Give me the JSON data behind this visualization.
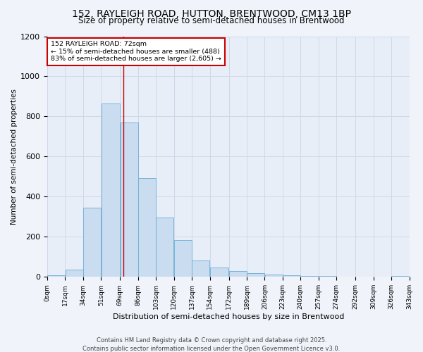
{
  "title": "152, RAYLEIGH ROAD, HUTTON, BRENTWOOD, CM13 1BP",
  "subtitle": "Size of property relative to semi-detached houses in Brentwood",
  "xlabel": "Distribution of semi-detached houses by size in Brentwood",
  "ylabel": "Number of semi-detached properties",
  "footer_line1": "Contains HM Land Registry data © Crown copyright and database right 2025.",
  "footer_line2": "Contains public sector information licensed under the Open Government Licence v3.0.",
  "annotation_title": "152 RAYLEIGH ROAD: 72sqm",
  "annotation_line1": "← 15% of semi-detached houses are smaller (488)",
  "annotation_line2": "83% of semi-detached houses are larger (2,605) →",
  "bar_left_edges": [
    0,
    17,
    34,
    51,
    69,
    86,
    103,
    120,
    137,
    154,
    172,
    189,
    206,
    223,
    240,
    257,
    274,
    292,
    309,
    326
  ],
  "bar_widths": [
    17,
    17,
    17,
    18,
    17,
    17,
    17,
    17,
    17,
    18,
    17,
    17,
    17,
    17,
    17,
    17,
    18,
    17,
    17,
    17
  ],
  "bar_heights": [
    8,
    35,
    345,
    865,
    770,
    492,
    295,
    185,
    82,
    48,
    30,
    20,
    12,
    8,
    5,
    3,
    2,
    1,
    1,
    5
  ],
  "tick_labels": [
    "0sqm",
    "17sqm",
    "34sqm",
    "51sqm",
    "69sqm",
    "86sqm",
    "103sqm",
    "120sqm",
    "137sqm",
    "154sqm",
    "172sqm",
    "189sqm",
    "206sqm",
    "223sqm",
    "240sqm",
    "257sqm",
    "274sqm",
    "292sqm",
    "309sqm",
    "326sqm",
    "343sqm"
  ],
  "tick_positions": [
    0,
    17,
    34,
    51,
    69,
    86,
    103,
    120,
    137,
    154,
    172,
    189,
    206,
    223,
    240,
    257,
    274,
    292,
    309,
    326,
    343
  ],
  "ylim": [
    0,
    1200
  ],
  "yticks": [
    0,
    200,
    400,
    600,
    800,
    1000,
    1200
  ],
  "bar_color": "#c9dcf0",
  "bar_edge_color": "#6aadd5",
  "grid_color": "#d0d8e8",
  "red_line_x": 72,
  "background_color": "#f0f4fa",
  "plot_bg_color": "#e8eef8",
  "annotation_box_color": "#ffffff",
  "annotation_border_color": "#cc0000",
  "title_fontsize": 10,
  "subtitle_fontsize": 8.5,
  "axis_label_fontsize": 8,
  "tick_fontsize": 6.5,
  "footer_fontsize": 6,
  "ylabel_fontsize": 7.5
}
